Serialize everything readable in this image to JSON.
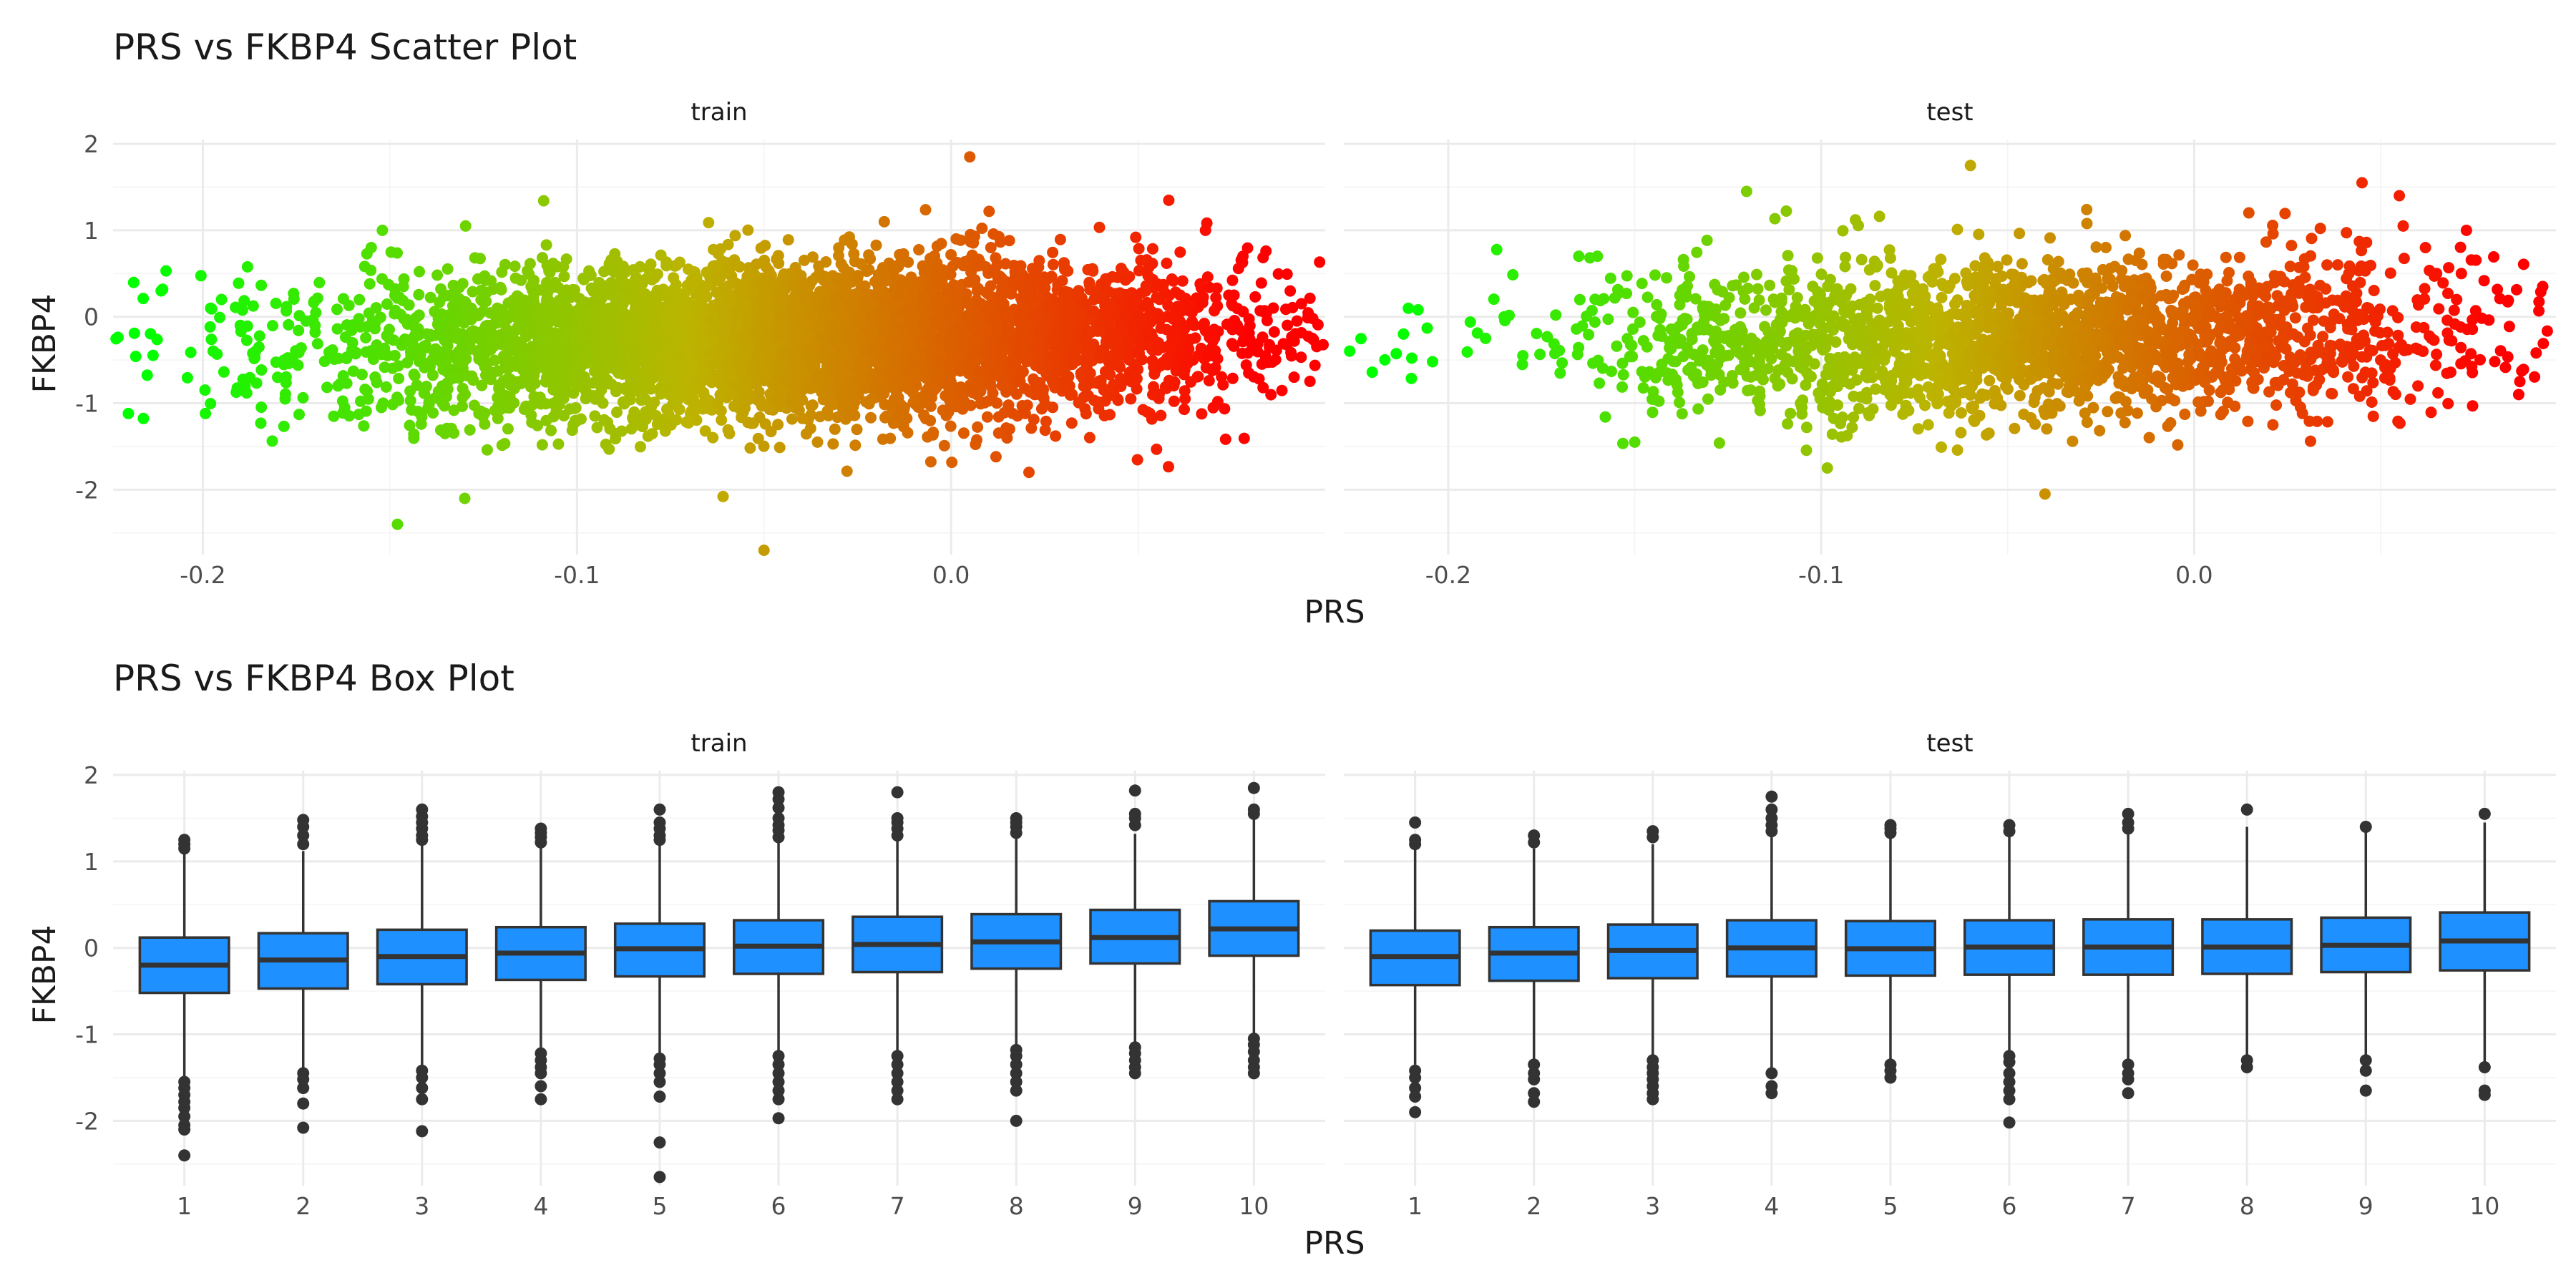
{
  "chart_data": [
    {
      "type": "scatter",
      "title": "PRS vs FKBP4 Scatter Plot",
      "xlabel": "PRS",
      "ylabel": "FKBP4",
      "y_ticks": [
        -2,
        -1,
        0,
        1,
        2
      ],
      "ylim": [
        -2.75,
        2.05
      ],
      "color_scale": {
        "low": "#00ff00",
        "mid": "#bcb400",
        "high": "#ff0000"
      },
      "facets": [
        {
          "label": "train",
          "x_ticks": [
            -0.2,
            -0.1,
            0.0
          ],
          "xlim": [
            -0.224,
            0.1
          ],
          "points": [
            {
              "x": -0.195,
              "y": 0.2
            },
            {
              "x": -0.19,
              "y": -0.1
            },
            {
              "x": -0.185,
              "y": -0.35
            },
            {
              "x": -0.18,
              "y": -0.7
            },
            {
              "x": -0.178,
              "y": -0.95
            },
            {
              "x": -0.17,
              "y": -0.1
            },
            {
              "x": -0.165,
              "y": -1.15
            },
            {
              "x": -0.16,
              "y": -0.3
            },
            {
              "x": -0.155,
              "y": 0.8
            },
            {
              "x": -0.152,
              "y": 1.0
            },
            {
              "x": -0.148,
              "y": -2.4
            },
            {
              "x": -0.13,
              "y": -2.1
            },
            {
              "x": -0.05,
              "y": -2.7
            },
            {
              "x": 0.005,
              "y": 1.85
            },
            {
              "x": 0.06,
              "y": -0.55
            },
            {
              "x": 0.07,
              "y": -0.45
            },
            {
              "x": 0.075,
              "y": 0.15
            },
            {
              "x": 0.078,
              "y": 0.7
            },
            {
              "x": 0.068,
              "y": 1.0
            },
            {
              "x": 0.065,
              "y": -0.1
            }
          ]
        },
        {
          "label": "test",
          "x_ticks": [
            -0.2,
            -0.1,
            0.0
          ],
          "xlim": [
            -0.228,
            0.097
          ],
          "points": [
            {
              "x": -0.212,
              "y": -0.2
            },
            {
              "x": -0.19,
              "y": -0.25
            },
            {
              "x": -0.185,
              "y": 0.0
            },
            {
              "x": -0.18,
              "y": -0.45
            },
            {
              "x": -0.17,
              "y": -0.65
            },
            {
              "x": -0.165,
              "y": 0.7
            },
            {
              "x": -0.16,
              "y": 0.7
            },
            {
              "x": -0.15,
              "y": -1.45
            },
            {
              "x": -0.12,
              "y": 1.45
            },
            {
              "x": -0.06,
              "y": 1.75
            },
            {
              "x": -0.04,
              "y": -2.05
            },
            {
              "x": 0.045,
              "y": 1.55
            },
            {
              "x": 0.055,
              "y": 1.4
            },
            {
              "x": 0.062,
              "y": 0.8
            },
            {
              "x": 0.065,
              "y": 0.5
            },
            {
              "x": 0.06,
              "y": -0.8
            },
            {
              "x": 0.073,
              "y": 1.0
            },
            {
              "x": 0.05,
              "y": -0.5
            }
          ]
        }
      ],
      "density_cloud": {
        "x_range": [
          -0.15,
          0.07
        ],
        "y_sd": 0.45,
        "note_points_per_facet": [
          5000,
          2200
        ]
      }
    },
    {
      "type": "box",
      "title": "PRS vs FKBP4 Box Plot",
      "xlabel": "PRS",
      "ylabel": "FKBP4",
      "categories": [
        "1",
        "2",
        "3",
        "4",
        "5",
        "6",
        "7",
        "8",
        "9",
        "10"
      ],
      "y_ticks": [
        -2,
        -1,
        0,
        1,
        2
      ],
      "ylim": [
        -2.75,
        2.05
      ],
      "box_fill": "#1e90ff",
      "facets": [
        {
          "label": "train",
          "boxes": [
            {
              "q1": -0.52,
              "median": -0.2,
              "q3": 0.12,
              "lower": -1.5,
              "upper": 1.1,
              "outliers": [
                1.15,
                1.2,
                1.25,
                -1.55,
                -1.62,
                -1.7,
                -1.78,
                -1.85,
                -1.95,
                -2.05,
                -2.1,
                -2.4
              ]
            },
            {
              "q1": -0.47,
              "median": -0.14,
              "q3": 0.17,
              "lower": -1.4,
              "upper": 1.12,
              "outliers": [
                1.2,
                1.3,
                1.4,
                1.48,
                -1.45,
                -1.52,
                -1.62,
                -1.8,
                -2.08
              ]
            },
            {
              "q1": -0.42,
              "median": -0.1,
              "q3": 0.21,
              "lower": -1.38,
              "upper": 1.2,
              "outliers": [
                1.25,
                1.3,
                1.38,
                1.45,
                1.52,
                1.6,
                -1.42,
                -1.5,
                -1.62,
                -1.75,
                -2.12
              ]
            },
            {
              "q1": -0.37,
              "median": -0.06,
              "q3": 0.24,
              "lower": -1.2,
              "upper": 1.18,
              "outliers": [
                1.22,
                1.28,
                1.33,
                1.38,
                -1.22,
                -1.3,
                -1.38,
                -1.45,
                -1.6,
                -1.75
              ]
            },
            {
              "q1": -0.33,
              "median": -0.01,
              "q3": 0.28,
              "lower": -1.25,
              "upper": 1.2,
              "outliers": [
                1.25,
                1.3,
                1.38,
                1.45,
                1.6,
                -1.28,
                -1.35,
                -1.45,
                -1.55,
                -1.72,
                -2.25,
                -2.65
              ]
            },
            {
              "q1": -0.3,
              "median": 0.02,
              "q3": 0.32,
              "lower": -1.22,
              "upper": 1.22,
              "outliers": [
                1.28,
                1.36,
                1.42,
                1.5,
                1.62,
                1.72,
                1.8,
                -1.25,
                -1.35,
                -1.45,
                -1.55,
                -1.65,
                -1.75,
                -1.97
              ]
            },
            {
              "q1": -0.28,
              "median": 0.04,
              "q3": 0.36,
              "lower": -1.2,
              "upper": 1.25,
              "outliers": [
                1.3,
                1.38,
                1.45,
                1.5,
                1.8,
                -1.25,
                -1.35,
                -1.45,
                -1.55,
                -1.65,
                -1.75
              ]
            },
            {
              "q1": -0.24,
              "median": 0.07,
              "q3": 0.39,
              "lower": -1.15,
              "upper": 1.28,
              "outliers": [
                1.33,
                1.4,
                1.45,
                1.5,
                -1.18,
                -1.25,
                -1.35,
                -1.45,
                -1.55,
                -1.65,
                -2.0
              ]
            },
            {
              "q1": -0.18,
              "median": 0.12,
              "q3": 0.44,
              "lower": -1.1,
              "upper": 1.32,
              "outliers": [
                1.42,
                1.5,
                1.55,
                1.82,
                -1.15,
                -1.22,
                -1.3,
                -1.38,
                -1.45
              ]
            },
            {
              "q1": -0.09,
              "median": 0.22,
              "q3": 0.54,
              "lower": -1.0,
              "upper": 1.5,
              "outliers": [
                1.55,
                1.6,
                1.85,
                -1.05,
                -1.12,
                -1.2,
                -1.3,
                -1.38,
                -1.45
              ]
            }
          ]
        },
        {
          "label": "test",
          "boxes": [
            {
              "q1": -0.43,
              "median": -0.1,
              "q3": 0.2,
              "lower": -1.35,
              "upper": 1.15,
              "outliers": [
                1.2,
                1.25,
                1.45,
                -1.42,
                -1.5,
                -1.62,
                -1.72,
                -1.9
              ]
            },
            {
              "q1": -0.38,
              "median": -0.06,
              "q3": 0.24,
              "lower": -1.3,
              "upper": 1.15,
              "outliers": [
                1.22,
                1.3,
                -1.35,
                -1.45,
                -1.52,
                -1.68,
                -1.78
              ]
            },
            {
              "q1": -0.35,
              "median": -0.03,
              "q3": 0.27,
              "lower": -1.28,
              "upper": 1.2,
              "outliers": [
                1.28,
                1.35,
                -1.3,
                -1.38,
                -1.45,
                -1.52,
                -1.6,
                -1.68,
                -1.75
              ]
            },
            {
              "q1": -0.33,
              "median": 0.0,
              "q3": 0.32,
              "lower": -1.4,
              "upper": 1.3,
              "outliers": [
                1.35,
                1.42,
                1.5,
                1.6,
                1.75,
                -1.45,
                -1.6,
                -1.68
              ]
            },
            {
              "q1": -0.32,
              "median": -0.01,
              "q3": 0.31,
              "lower": -1.3,
              "upper": 1.28,
              "outliers": [
                1.33,
                1.38,
                1.42,
                -1.35,
                -1.42,
                -1.5
              ]
            },
            {
              "q1": -0.31,
              "median": 0.01,
              "q3": 0.32,
              "lower": -1.2,
              "upper": 1.3,
              "outliers": [
                1.35,
                1.42,
                -1.25,
                -1.32,
                -1.45,
                -1.55,
                -1.65,
                -1.75,
                -2.02
              ]
            },
            {
              "q1": -0.31,
              "median": 0.01,
              "q3": 0.33,
              "lower": -1.3,
              "upper": 1.32,
              "outliers": [
                1.38,
                1.45,
                1.55,
                -1.35,
                -1.45,
                -1.52,
                -1.68
              ]
            },
            {
              "q1": -0.3,
              "median": 0.01,
              "q3": 0.33,
              "lower": -1.28,
              "upper": 1.4,
              "outliers": [
                1.6,
                -1.3,
                -1.38
              ]
            },
            {
              "q1": -0.28,
              "median": 0.03,
              "q3": 0.35,
              "lower": -1.25,
              "upper": 1.38,
              "outliers": [
                1.4,
                -1.3,
                -1.42,
                -1.65
              ]
            },
            {
              "q1": -0.26,
              "median": 0.08,
              "q3": 0.41,
              "lower": -1.32,
              "upper": 1.45,
              "outliers": [
                1.55,
                -1.38,
                -1.65,
                -1.7
              ]
            }
          ]
        }
      ]
    }
  ]
}
